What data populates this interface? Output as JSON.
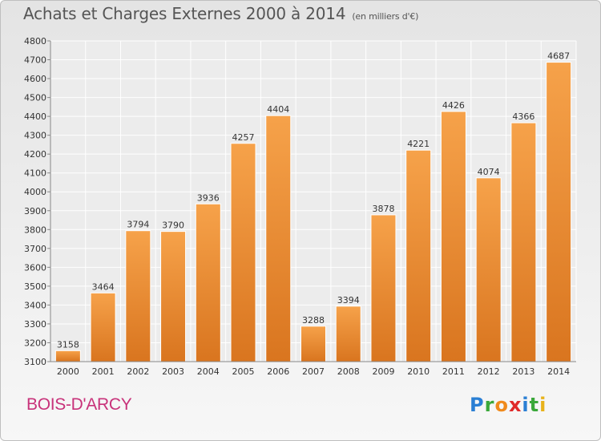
{
  "header": {
    "title": "Achats et Charges Externes 2000 à 2014",
    "unit": "(en milliers d'€)"
  },
  "footer": {
    "city": "BOIS-D'ARCY",
    "brand_letters": [
      {
        "ch": "P",
        "color": "#2a7fd4"
      },
      {
        "ch": "r",
        "color": "#3aa83a"
      },
      {
        "ch": "o",
        "color": "#f08a1c"
      },
      {
        "ch": "x",
        "color": "#e02a2a"
      },
      {
        "ch": "i",
        "color": "#2a7fd4"
      },
      {
        "ch": "t",
        "color": "#3aa83a"
      },
      {
        "ch": "i",
        "color": "#e8b21a"
      }
    ]
  },
  "chart_data": {
    "type": "bar",
    "categories": [
      "2000",
      "2001",
      "2002",
      "2003",
      "2004",
      "2005",
      "2006",
      "2007",
      "2008",
      "2009",
      "2010",
      "2011",
      "2012",
      "2013",
      "2014"
    ],
    "values": [
      3158,
      3464,
      3794,
      3790,
      3936,
      4257,
      4404,
      3288,
      3394,
      3878,
      4221,
      4426,
      4074,
      4366,
      4687
    ],
    "title": "Achats et Charges Externes 2000 à 2014",
    "xlabel": "",
    "ylabel": "",
    "ylim": [
      3100,
      4800
    ],
    "yticks": [
      3100,
      3200,
      3300,
      3400,
      3500,
      3600,
      3700,
      3800,
      3900,
      4000,
      4100,
      4200,
      4300,
      4400,
      4500,
      4600,
      4700,
      4800
    ],
    "grid": true,
    "bar_colors": {
      "light": "#f6a24a",
      "dark": "#d9751f"
    }
  }
}
